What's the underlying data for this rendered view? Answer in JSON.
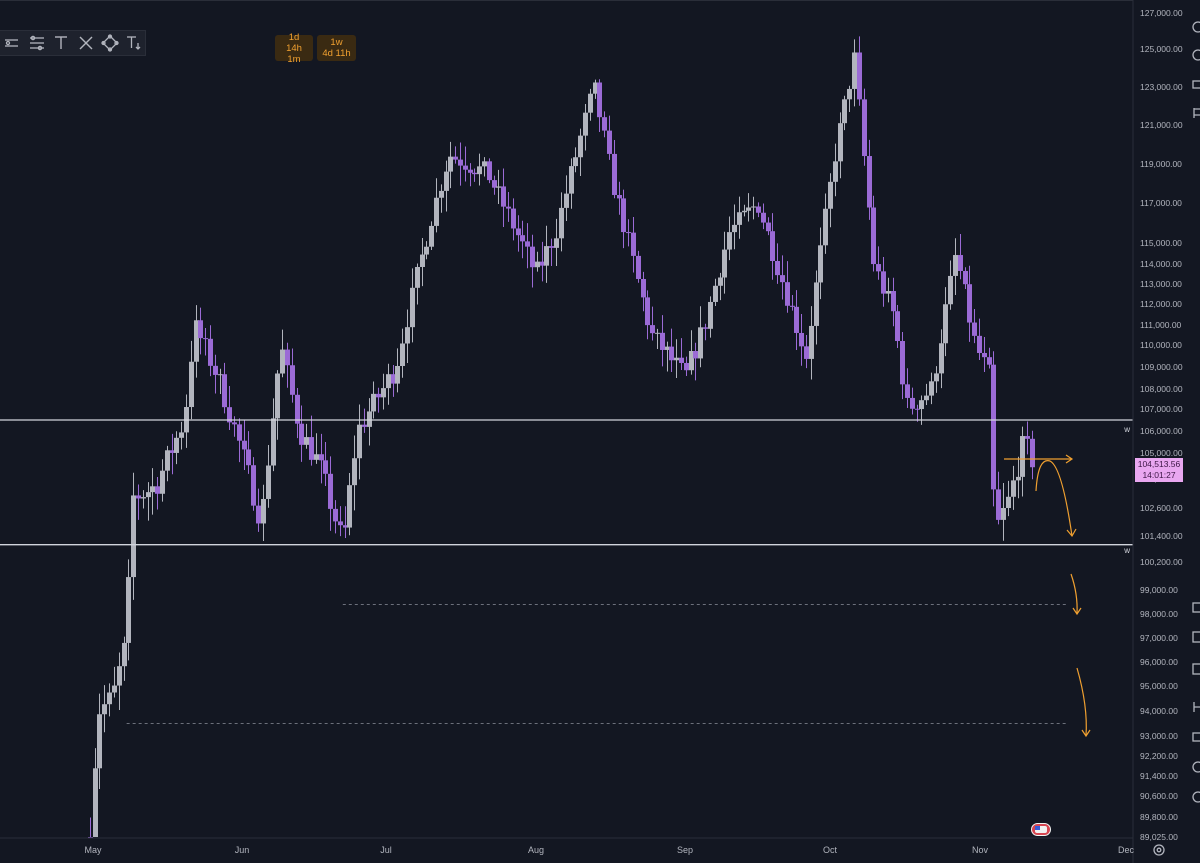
{
  "toolbar": {
    "tools": [
      "lines-icon",
      "fib-icon",
      "text-icon",
      "cross-pattern-icon",
      "node-icon",
      "text-size-icon"
    ]
  },
  "countdowns": [
    {
      "interval": "1d",
      "remaining": "14h 1m"
    },
    {
      "interval": "1w",
      "remaining": "4d 11h"
    }
  ],
  "current_price": {
    "value": "104,513.56",
    "countdown": "14:01:27",
    "color": "#e9a7f0"
  },
  "level_marks": {
    "upper": "w",
    "lower": "w"
  },
  "colors": {
    "background": "#131722",
    "bull_candle": "#b2b5be",
    "bear_candle": "#9b6bd6",
    "level_line": "#d1d4dc",
    "annotation": "#f0a030"
  },
  "chart_data": {
    "type": "candlestick",
    "instrument_hint": "BTC daily",
    "title": "",
    "xlabel": "",
    "ylabel": "",
    "x_tick_labels": [
      "May",
      "Jun",
      "Jul",
      "Aug",
      "Sep",
      "Oct",
      "Nov",
      "Dec"
    ],
    "y_tick_labels": [
      "127,000.00",
      "125,000.00",
      "123,000.00",
      "121,000.00",
      "119,000.00",
      "117,000.00",
      "115,000.00",
      "114,000.00",
      "113,000.00",
      "112,000.00",
      "111,000.00",
      "110,000.00",
      "109,000.00",
      "108,000.00",
      "107,000.00",
      "106,000.00",
      "105,000.00",
      "103,800.00",
      "102,600.00",
      "101,400.00",
      "100,200.00",
      "99,000.00",
      "98,000.00",
      "97,000.00",
      "96,000.00",
      "95,000.00",
      "94,000.00",
      "93,000.00",
      "92,200.00",
      "91,400.00",
      "90,600.00",
      "89,800.00",
      "89,025.00"
    ],
    "horizontal_levels": [
      106500,
      101000
    ],
    "dashed_levels": [
      {
        "value": 98400,
        "from": "Jun"
      },
      {
        "value": 93500,
        "from": "May"
      }
    ],
    "annotations": [
      "horizontal arrow near 105,000",
      "curved arrow down to 101,400",
      "arrow down to 98,000",
      "arrow down to 93,000"
    ],
    "close_path": [
      [
        "Apr 29",
        89000
      ],
      [
        "May 2",
        94000
      ],
      [
        "May 5",
        94500
      ],
      [
        "May 8",
        97000
      ],
      [
        "May 9",
        103000
      ],
      [
        "May 14",
        103500
      ],
      [
        "May 20",
        106500
      ],
      [
        "May 22",
        111000
      ],
      [
        "May 27",
        108500
      ],
      [
        "Jun 1",
        105000
      ],
      [
        "Jun 5",
        102000
      ],
      [
        "Jun 9",
        110000
      ],
      [
        "Jun 13",
        106000
      ],
      [
        "Jun 17",
        104500
      ],
      [
        "Jun 22",
        101000
      ],
      [
        "Jun 25",
        106000
      ],
      [
        "Jul 3",
        109000
      ],
      [
        "Jul 10",
        116000
      ],
      [
        "Jul 14",
        119500
      ],
      [
        "Jul 22",
        118500
      ],
      [
        "Aug 1",
        113500
      ],
      [
        "Aug 5",
        115500
      ],
      [
        "Aug 13",
        123000
      ],
      [
        "Aug 17",
        118000
      ],
      [
        "Aug 25",
        110500
      ],
      [
        "Sep 1",
        108500
      ],
      [
        "Sep 5",
        111000
      ],
      [
        "Sep 10",
        115500
      ],
      [
        "Sep 16",
        117000
      ],
      [
        "Sep 22",
        112500
      ],
      [
        "Sep 26",
        109500
      ],
      [
        "Oct 2",
        119500
      ],
      [
        "Oct 6",
        124500
      ],
      [
        "Oct 10",
        114000
      ],
      [
        "Oct 14",
        111500
      ],
      [
        "Oct 17",
        107000
      ],
      [
        "Oct 22",
        108000
      ],
      [
        "Oct 27",
        114500
      ],
      [
        "Oct 31",
        110000
      ],
      [
        "Nov 3",
        108500
      ],
      [
        "Nov 4",
        101500
      ],
      [
        "Nov 7",
        103000
      ],
      [
        "Nov 10",
        105500
      ],
      [
        "Nov 12",
        104513
      ]
    ]
  }
}
